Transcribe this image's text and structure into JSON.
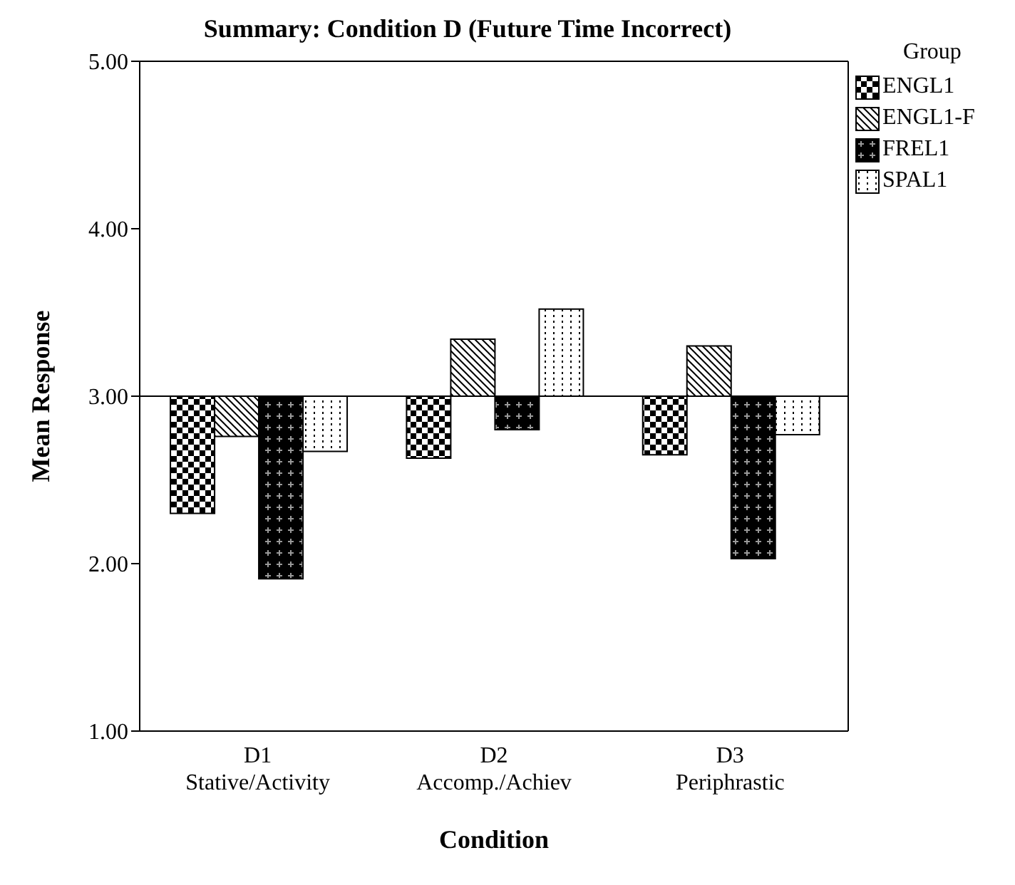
{
  "chart_data": {
    "type": "bar",
    "title": "Summary: Condition D (Future Time Incorrect)",
    "xlabel": "Condition",
    "ylabel": "Mean Response",
    "legend_title": "Group",
    "categories": [
      "D1\nStative/Activity",
      "D2\nAccomp./Achiev",
      "D3\nPeriphrastic"
    ],
    "series": [
      {
        "name": "ENGL1",
        "color": "#000000",
        "base": [
          3,
          3,
          3
        ],
        "values": [
          -0.7,
          -0.37,
          -0.35
        ]
      },
      {
        "name": "ENGL1-F",
        "color": "#000000",
        "base": [
          3,
          3,
          3
        ],
        "values": [
          -0.24,
          0.34,
          0.3
        ]
      },
      {
        "name": "FREL1",
        "color": "#000000",
        "base": [
          3,
          3,
          3
        ],
        "values": [
          -1.09,
          -0.2,
          -0.97
        ]
      },
      {
        "name": "SPAL1",
        "color": "#000000",
        "base": [
          3,
          3,
          3
        ],
        "values": [
          -0.33,
          0.52,
          -0.23
        ]
      }
    ],
    "ref_lines": [
      {
        "axis": "y",
        "value": 3,
        "color": "#000000"
      }
    ],
    "ylim": [
      1,
      5
    ],
    "yticks": [
      {
        "value": 1,
        "label": "1.00"
      },
      {
        "value": 2,
        "label": "2.00"
      },
      {
        "value": 3,
        "label": "3.00"
      },
      {
        "value": 4,
        "label": "4.00"
      },
      {
        "value": 5,
        "label": "5.00"
      }
    ],
    "grid": false,
    "legend": "top right"
  }
}
